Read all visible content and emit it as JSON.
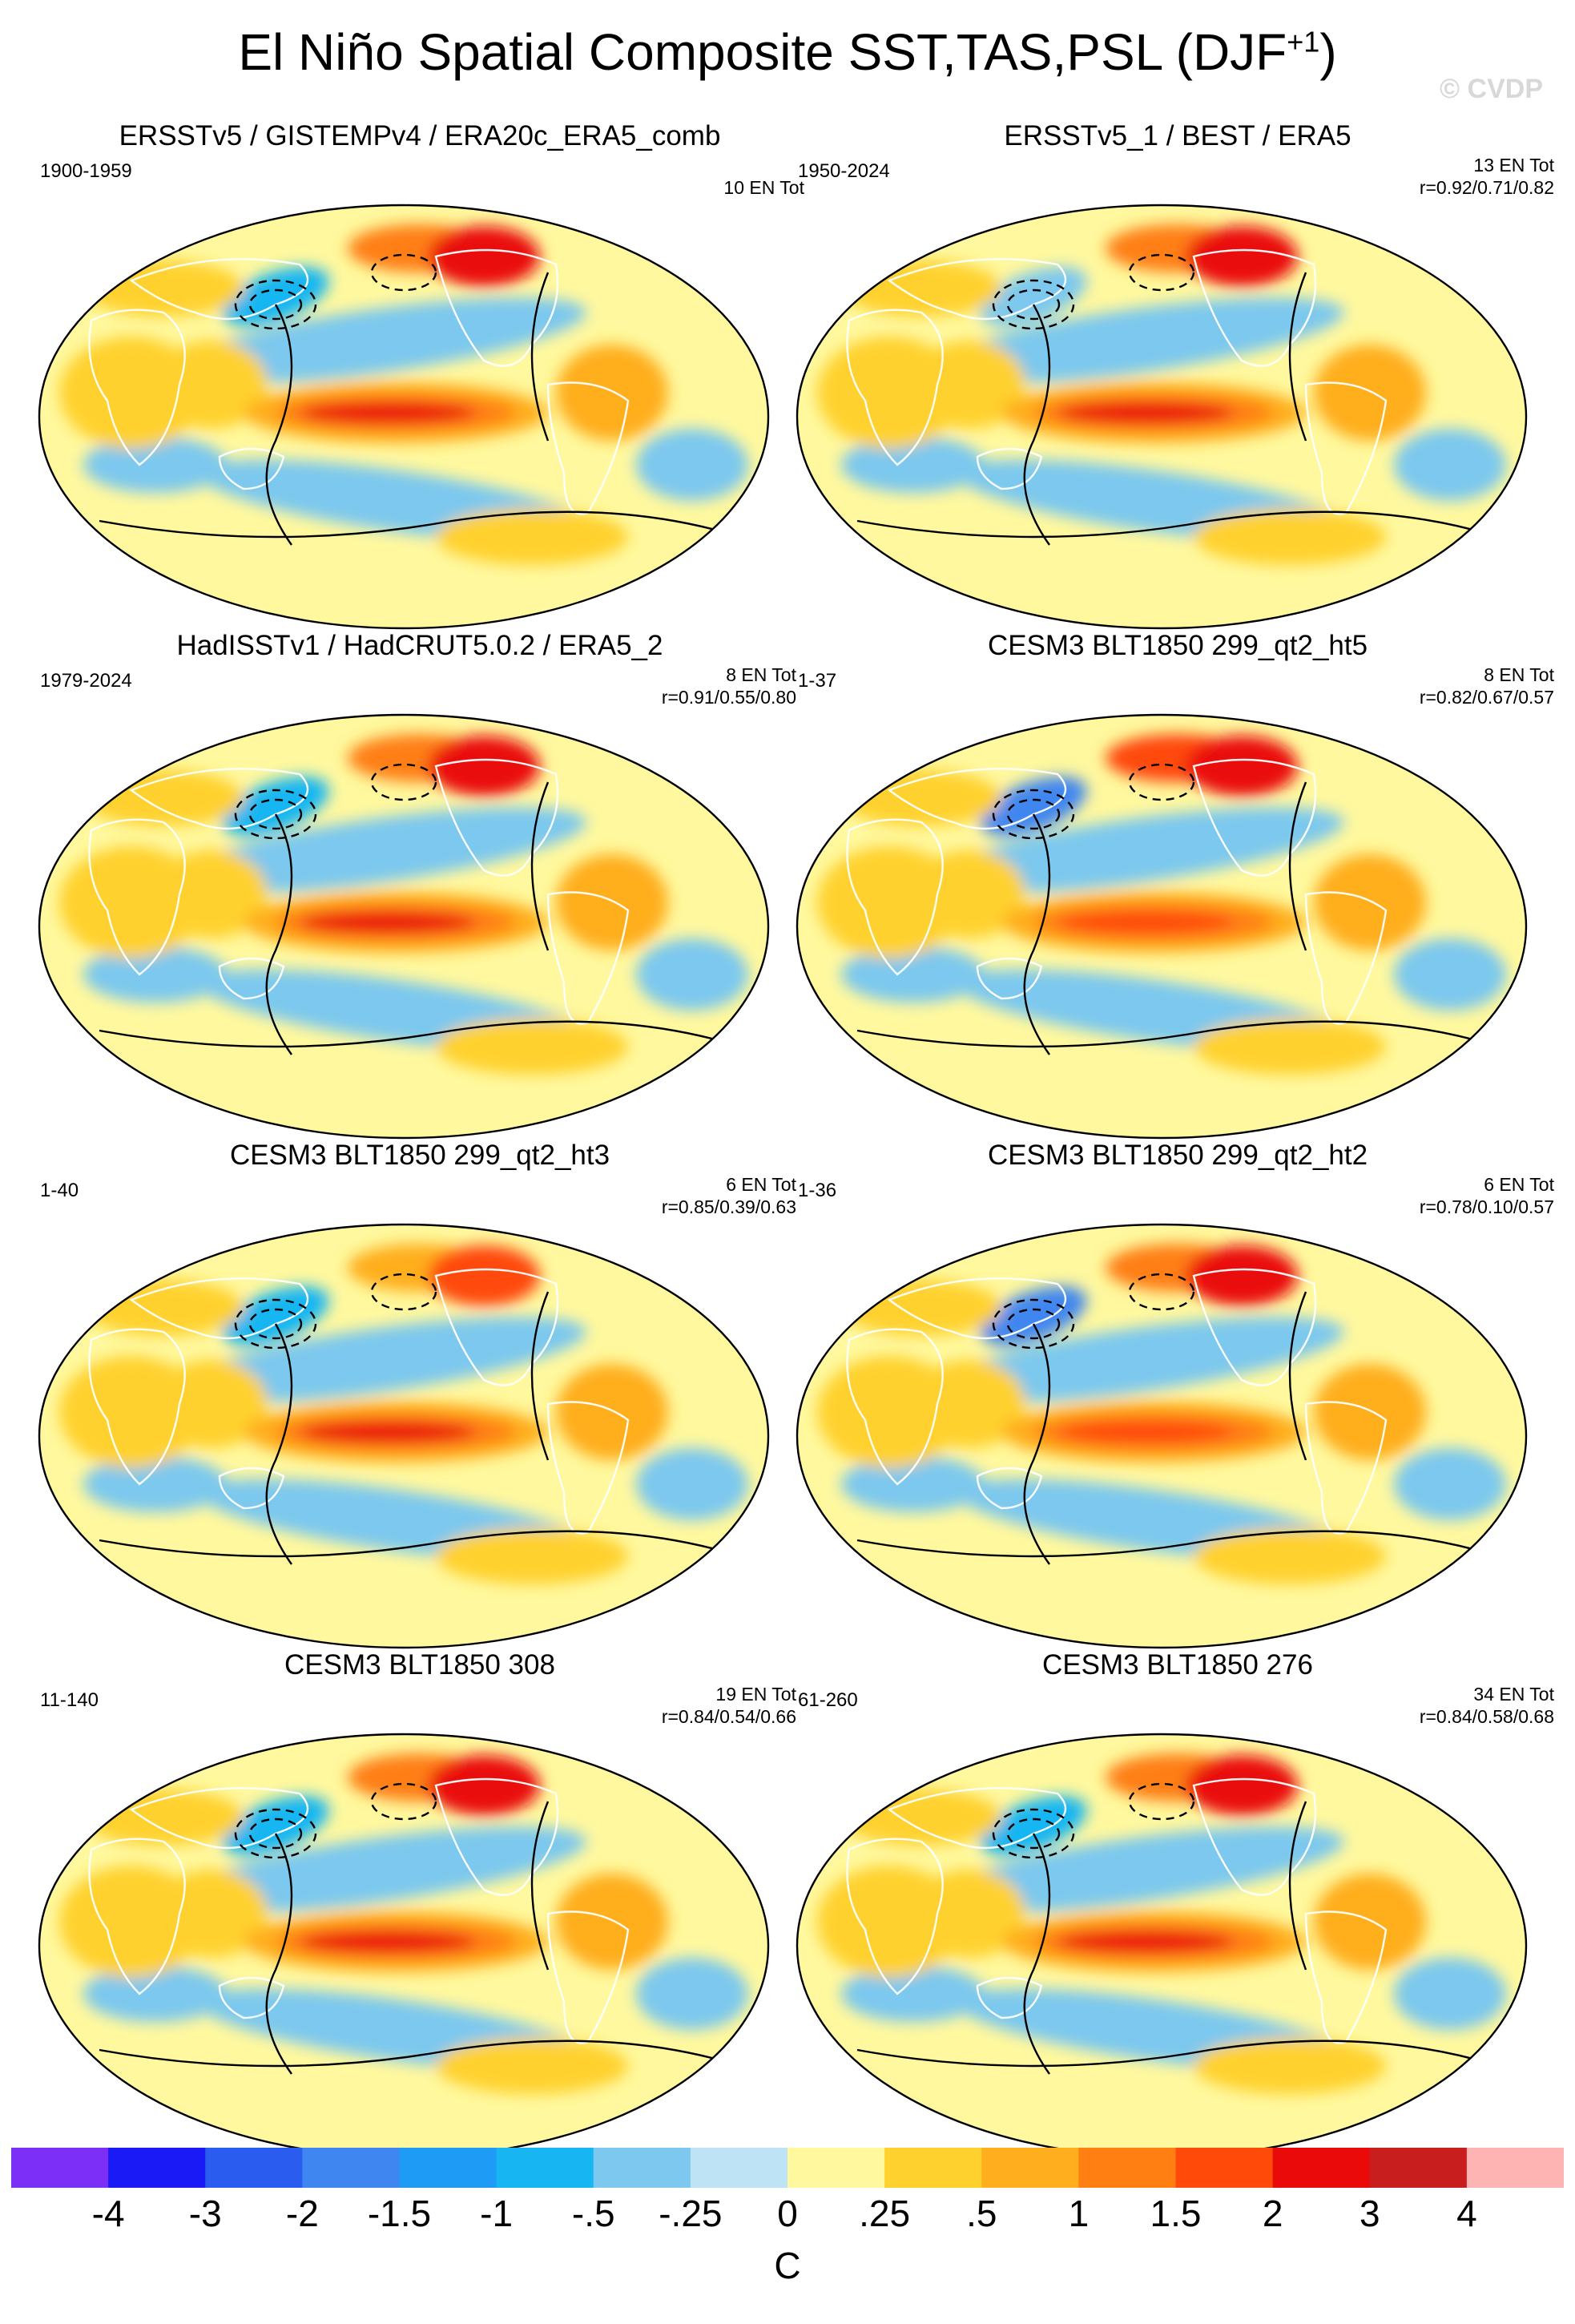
{
  "figure": {
    "title": "El Niño Spatial Composite SST,TAS,PSL (DJF",
    "title_sup": "+1",
    "title_close": ")",
    "watermark": "© CVDP",
    "unit": "C"
  },
  "colors": {
    "levels": [
      "#7b2ff7",
      "#1a1af7",
      "#2a5cf0",
      "#3f86f0",
      "#1e9bf5",
      "#17b6f2",
      "#7cc8ee",
      "#bde3f4",
      "#fff89e",
      "#ffd12e",
      "#ffae1e",
      "#ff7f12",
      "#ff4a0a",
      "#ea0a0a",
      "#c81e1e",
      "#ffb4b4"
    ],
    "land_outline": "#ffffff",
    "contour": "#000000"
  },
  "chart_data": {
    "type": "heatmap",
    "description_units": "C",
    "colorbar": {
      "tick_labels": [
        "-4",
        "-3",
        "-2",
        "-1.5",
        "-1",
        "-.5",
        "-.25",
        "0",
        ".25",
        ".5",
        "1",
        "1.5",
        "2",
        "3",
        "4"
      ],
      "levels": [
        -4,
        -3,
        -2,
        -1.5,
        -1,
        -0.5,
        -0.25,
        0,
        0.25,
        0.5,
        1,
        1.5,
        2,
        3,
        4
      ],
      "unit": "C"
    },
    "panels": [
      {
        "title": "ERSSTv5 / GISTEMPv4 / ERA20c_ERA5_comb",
        "years": "1900-1959",
        "stats_line1": "10 EN Tot",
        "stats_line2": "",
        "nino34_peak": 2.0,
        "na_warm": 2.4,
        "na_cool_lobe": -0.6
      },
      {
        "title": "ERSSTv5_1 / BEST / ERA5",
        "years": "1950-2024",
        "stats_line1": "13 EN Tot",
        "stats_line2": "r=0.92/0.71/0.82",
        "nino34_peak": 2.1,
        "na_warm": 2.3,
        "na_cool_lobe": -0.5
      },
      {
        "title": "HadISSTv1 / HadCRUT5.0.2 / ERA5_2",
        "years": "1979-2024",
        "stats_line1": "8 EN Tot",
        "stats_line2": "r=0.91/0.55/0.80",
        "nino34_peak": 2.6,
        "na_warm": 2.2,
        "na_cool_lobe": -0.7
      },
      {
        "title": "CESM3 BLT1850 299_qt2_ht5",
        "years": "1-37",
        "stats_line1": "8 EN Tot",
        "stats_line2": "r=0.82/0.67/0.57",
        "nino34_peak": 1.8,
        "na_warm": 2.6,
        "na_cool_lobe": -2.0
      },
      {
        "title": "CESM3 BLT1850 299_qt2_ht3",
        "years": "1-40",
        "stats_line1": "6 EN Tot",
        "stats_line2": "r=0.85/0.39/0.63",
        "nino34_peak": 2.2,
        "na_warm": 1.6,
        "na_cool_lobe": -0.8
      },
      {
        "title": "CESM3 BLT1850 299_qt2_ht2",
        "years": "1-36",
        "stats_line1": "6 EN Tot",
        "stats_line2": "r=0.78/0.10/0.57",
        "nino34_peak": 1.8,
        "na_warm": 2.2,
        "na_cool_lobe": -1.6
      },
      {
        "title": "CESM3 BLT1850 308",
        "years": "11-140",
        "stats_line1": "19 EN Tot",
        "stats_line2": "r=0.84/0.54/0.66",
        "nino34_peak": 2.4,
        "na_warm": 2.4,
        "na_cool_lobe": -0.8
      },
      {
        "title": "CESM3 BLT1850 276",
        "years": "61-260",
        "stats_line1": "34 EN Tot",
        "stats_line2": "r=0.84/0.58/0.68",
        "nino34_peak": 2.2,
        "na_warm": 2.2,
        "na_cool_lobe": -0.6
      }
    ]
  }
}
